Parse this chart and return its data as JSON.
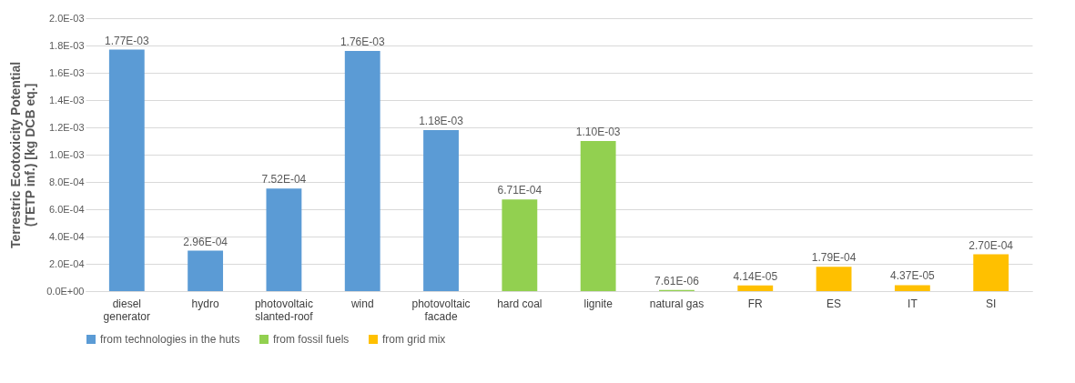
{
  "chart_data": {
    "type": "bar",
    "ylabel": "Terrestric Ecotoxicity Potential (TETP inf.) [kg DCB eq.]",
    "categories": [
      "diesel generator",
      "hydro",
      "photovoltaic slanted-roof",
      "wind",
      "photovoltaic facade",
      "hard coal",
      "lignite",
      "natural gas",
      "FR",
      "ES",
      "IT",
      "SI"
    ],
    "series": [
      {
        "name": "from technologies in the huts",
        "color": "#5b9bd5",
        "values": [
          0.00177,
          0.000296,
          0.000752,
          0.00176,
          0.00118,
          null,
          null,
          null,
          null,
          null,
          null,
          null
        ],
        "value_labels": [
          "1.77E-03",
          "2.96E-04",
          "7.52E-04",
          "1.76E-03",
          "1.18E-03",
          null,
          null,
          null,
          null,
          null,
          null,
          null
        ]
      },
      {
        "name": "from fossil fuels",
        "color": "#92d050",
        "values": [
          null,
          null,
          null,
          null,
          null,
          0.000671,
          0.0011,
          7.61e-06,
          null,
          null,
          null,
          null
        ],
        "value_labels": [
          null,
          null,
          null,
          null,
          null,
          "6.71E-04",
          "1.10E-03",
          "7.61E-06",
          null,
          null,
          null,
          null
        ]
      },
      {
        "name": "from grid mix",
        "color": "#ffc000",
        "values": [
          null,
          null,
          null,
          null,
          null,
          null,
          null,
          null,
          4.14e-05,
          0.000179,
          4.37e-05,
          0.00027
        ],
        "value_labels": [
          null,
          null,
          null,
          null,
          null,
          null,
          null,
          null,
          "4.14E-05",
          "1.79E-04",
          "4.37E-05",
          "2.70E-04"
        ]
      }
    ],
    "ylim": [
      0,
      0.002
    ],
    "yticks": [
      {
        "value": 0,
        "label": "0.0E+00"
      },
      {
        "value": 0.0002,
        "label": "2.0E-04"
      },
      {
        "value": 0.0004,
        "label": "4.0E-04"
      },
      {
        "value": 0.0006,
        "label": "6.0E-04"
      },
      {
        "value": 0.0008,
        "label": "8.0E-04"
      },
      {
        "value": 0.001,
        "label": "1.0E-03"
      },
      {
        "value": 0.0012,
        "label": "1.2E-03"
      },
      {
        "value": 0.0014,
        "label": "1.4E-03"
      },
      {
        "value": 0.0016,
        "label": "1.6E-03"
      },
      {
        "value": 0.0018,
        "label": "1.8E-03"
      },
      {
        "value": 0.002,
        "label": "2.0E-03"
      }
    ],
    "grid": "y",
    "legend": "bottom"
  }
}
